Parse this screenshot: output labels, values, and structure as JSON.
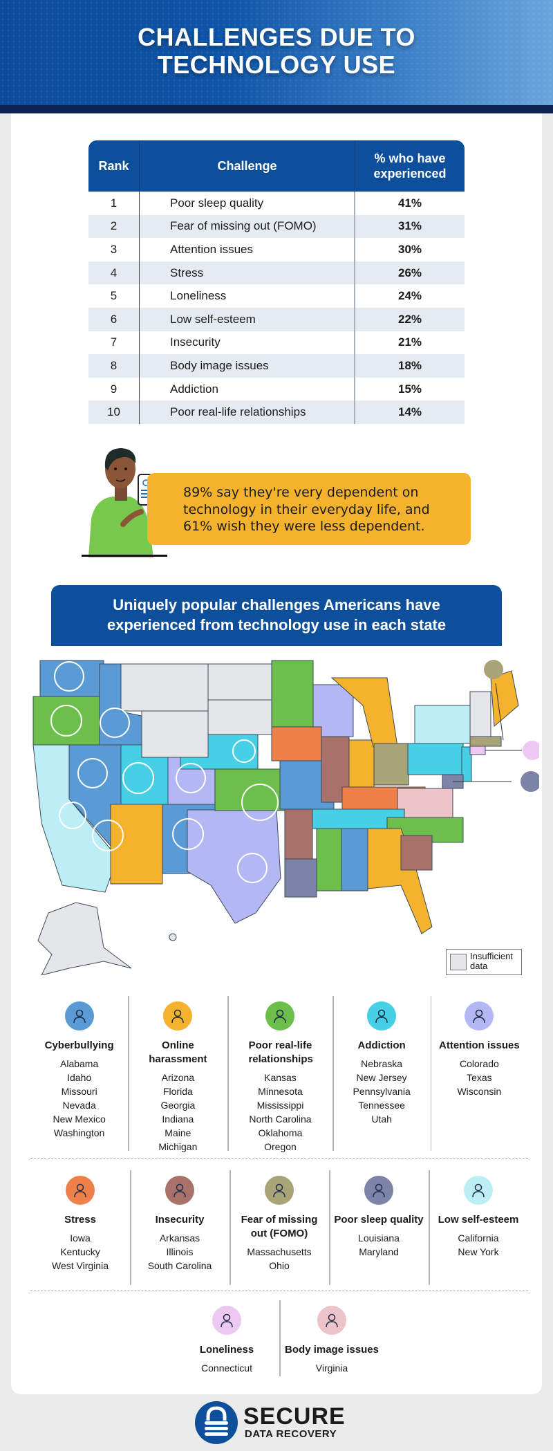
{
  "header": {
    "title_line1": "CHALLENGES DUE TO",
    "title_line2": "TECHNOLOGY USE"
  },
  "table": {
    "columns": [
      "Rank",
      "Challenge",
      "% who have experienced"
    ],
    "rows": [
      {
        "rank": "1",
        "challenge": "Poor sleep quality",
        "pct": "41%"
      },
      {
        "rank": "2",
        "challenge": "Fear of missing out (FOMO)",
        "pct": "31%"
      },
      {
        "rank": "3",
        "challenge": "Attention issues",
        "pct": "30%"
      },
      {
        "rank": "4",
        "challenge": "Stress",
        "pct": "26%"
      },
      {
        "rank": "5",
        "challenge": "Loneliness",
        "pct": "24%"
      },
      {
        "rank": "6",
        "challenge": "Low self-esteem",
        "pct": "22%"
      },
      {
        "rank": "7",
        "challenge": "Insecurity",
        "pct": "21%"
      },
      {
        "rank": "8",
        "challenge": "Body image issues",
        "pct": "18%"
      },
      {
        "rank": "9",
        "challenge": "Addiction",
        "pct": "15%"
      },
      {
        "rank": "10",
        "challenge": "Poor real-life relationships",
        "pct": "14%"
      }
    ]
  },
  "callout": {
    "text": "89% say they're very dependent on technology in their everyday life, and 61% wish they were less dependent."
  },
  "map_section": {
    "title": "Uniquely popular challenges Americans have experienced from technology use in each state",
    "legend": {
      "label": "Insufficient data",
      "color": "#e4e6ea"
    }
  },
  "categories": [
    {
      "name": "Cyberbullying",
      "icon": "cyberbullying-icon",
      "color": "#5b9bd5",
      "states": [
        "Alabama",
        "Idaho",
        "Missouri",
        "Nevada",
        "New Mexico",
        "Washington"
      ]
    },
    {
      "name": "Online harassment",
      "icon": "online-harassment-icon",
      "color": "#f5b22c",
      "states": [
        "Arizona",
        "Florida",
        "Georgia",
        "Indiana",
        "Maine",
        "Michigan"
      ]
    },
    {
      "name": "Poor real-life relationships",
      "icon": "broken-heart-icon",
      "color": "#6cbf4a",
      "states": [
        "Kansas",
        "Minnesota",
        "Mississippi",
        "North Carolina",
        "Oklahoma",
        "Oregon"
      ]
    },
    {
      "name": "Addiction",
      "icon": "phone-tap-icon",
      "color": "#45d0e6",
      "states": [
        "Nebraska",
        "New Jersey",
        "Pennsylvania",
        "Tennessee",
        "Utah"
      ]
    },
    {
      "name": "Attention issues",
      "icon": "attention-icon",
      "color": "#b3b8f4",
      "states": [
        "Colorado",
        "Texas",
        "Wisconsin"
      ]
    },
    {
      "name": "Stress",
      "icon": "stress-icon",
      "color": "#ef8148",
      "states": [
        "Iowa",
        "Kentucky",
        "West Virginia"
      ]
    },
    {
      "name": "Insecurity",
      "icon": "insecurity-icon",
      "color": "#a8726a",
      "states": [
        "Arkansas",
        "Illinois",
        "South Carolina"
      ]
    },
    {
      "name": "Fear of missing out (FOMO)",
      "icon": "fomo-icon",
      "color": "#a9a378",
      "states": [
        "Massachusetts",
        "Ohio"
      ]
    },
    {
      "name": "Poor sleep quality",
      "icon": "poor-sleep-icon",
      "color": "#7d84a8",
      "states": [
        "Louisiana",
        "Maryland"
      ]
    },
    {
      "name": "Low self-esteem",
      "icon": "low-self-esteem-icon",
      "color": "#bdeef5",
      "states": [
        "California",
        "New York"
      ]
    },
    {
      "name": "Loneliness",
      "icon": "loneliness-icon",
      "color": "#ecc8f3",
      "states": [
        "Connecticut"
      ]
    },
    {
      "name": "Body image issues",
      "icon": "body-image-icon",
      "color": "#ecc3c8",
      "states": [
        "Virginia"
      ]
    }
  ],
  "footer": {
    "brand_line1": "SECURE",
    "brand_line2": "DATA RECOVERY"
  }
}
